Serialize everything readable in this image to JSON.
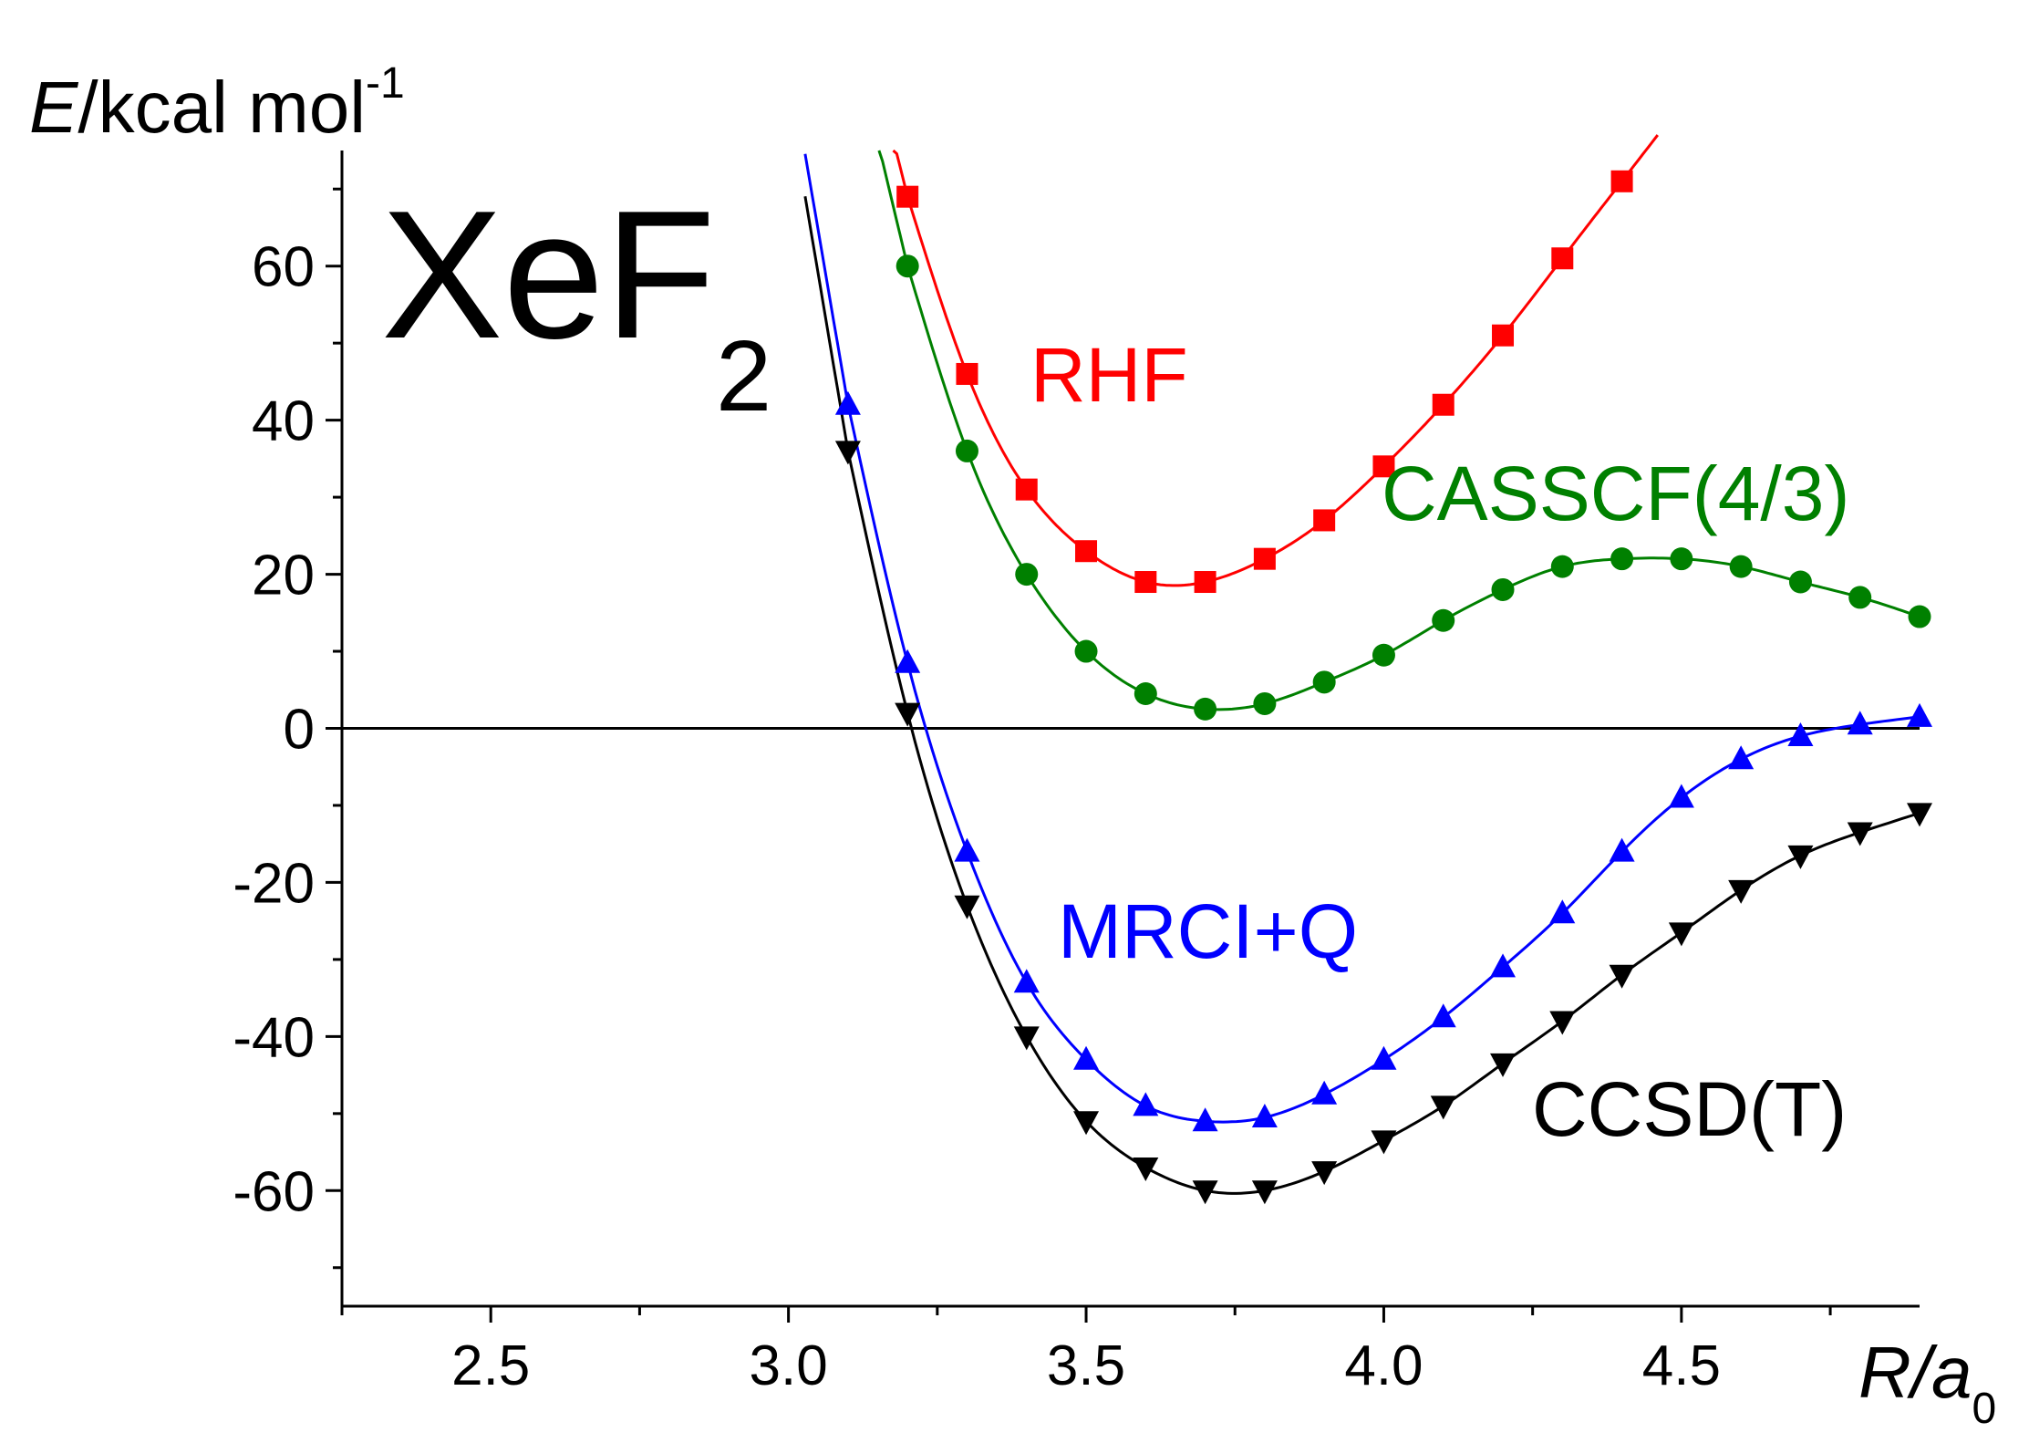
{
  "chart_data": {
    "type": "line",
    "title": "XeF",
    "title_subscript": "2",
    "ylabel_italic": "E",
    "ylabel_rest": "/kcal mol",
    "ylabel_superscript": "-1",
    "xlabel_italic": "R/a",
    "xlabel_subscript": "0",
    "xlim": [
      2.25,
      4.9
    ],
    "ylim": [
      -75,
      75
    ],
    "x_ticks": [
      2.5,
      3.0,
      3.5,
      4.0,
      4.5
    ],
    "x_tick_labels": [
      "2.5",
      "3.0",
      "3.5",
      "4.0",
      "4.5"
    ],
    "y_ticks": [
      -60,
      -40,
      -20,
      0,
      20,
      40,
      60
    ],
    "y_tick_labels": [
      "-60",
      "-40",
      "-20",
      "0",
      "20",
      "40",
      "60"
    ],
    "zero_line": true,
    "series": [
      {
        "name": "RHF",
        "color": "#ff0000",
        "marker": "square",
        "x": [
          3.2,
          3.3,
          3.4,
          3.5,
          3.6,
          3.7,
          3.8,
          3.9,
          4.0,
          4.1,
          4.2,
          4.3,
          4.4
        ],
        "y": [
          69,
          46,
          31,
          23,
          19,
          19,
          22,
          27,
          34,
          42,
          51,
          61,
          71
        ]
      },
      {
        "name": "CASSCF(4/3)",
        "color": "#008000",
        "marker": "circle",
        "x": [
          3.2,
          3.3,
          3.4,
          3.5,
          3.6,
          3.7,
          3.8,
          3.9,
          4.0,
          4.1,
          4.2,
          4.3,
          4.4,
          4.5,
          4.6,
          4.7,
          4.8,
          4.9
        ],
        "y": [
          60,
          36,
          20,
          10,
          4.5,
          2.5,
          3.2,
          6,
          9.5,
          14,
          18,
          21,
          22,
          22,
          21,
          19,
          17,
          14.5
        ]
      },
      {
        "name": "MRCI+Q",
        "color": "#0000ff",
        "marker": "triangle-up",
        "x": [
          3.1,
          3.2,
          3.3,
          3.4,
          3.5,
          3.6,
          3.7,
          3.8,
          3.9,
          4.0,
          4.1,
          4.2,
          4.3,
          4.4,
          4.5,
          4.6,
          4.7,
          4.8,
          4.9
        ],
        "y": [
          42,
          8.5,
          -16,
          -33,
          -43,
          -49,
          -51,
          -50.5,
          -47.5,
          -43,
          -37.5,
          -31,
          -24,
          -16,
          -9,
          -4,
          -1,
          0.5,
          1.5
        ]
      },
      {
        "name": "CCSD(T)",
        "color": "#000000",
        "marker": "triangle-down",
        "x": [
          3.1,
          3.2,
          3.3,
          3.4,
          3.5,
          3.6,
          3.7,
          3.8,
          3.9,
          4.0,
          4.1,
          4.2,
          4.3,
          4.4,
          4.5,
          4.6,
          4.7,
          4.8,
          4.9
        ],
        "y": [
          36,
          2,
          -23,
          -40,
          -51,
          -57,
          -60,
          -60,
          -57.5,
          -53.5,
          -49,
          -43.5,
          -38,
          -32,
          -26.5,
          -21,
          -16.5,
          -13.5,
          -11
        ]
      }
    ]
  }
}
